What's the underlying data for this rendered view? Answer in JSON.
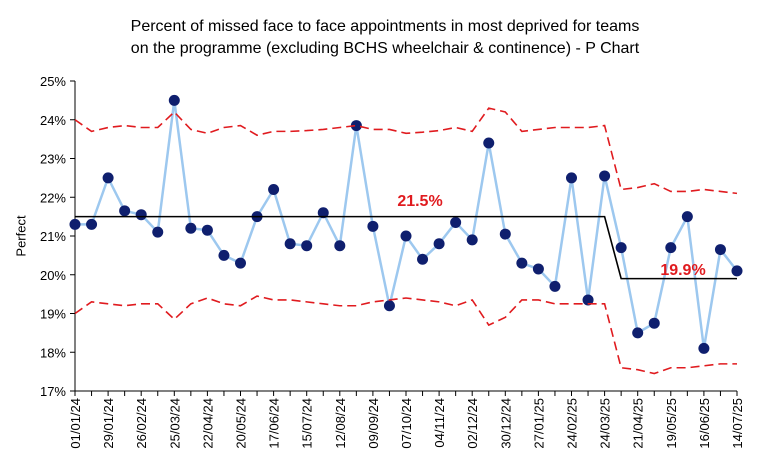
{
  "chart_data": {
    "type": "line",
    "title": [
      "Percent of missed face to face appointments in most deprived for teams",
      "on the programme (excluding BCHS wheelchair & continence) - P Chart"
    ],
    "y_label": "Perfect",
    "categories": [
      "01/01/24",
      null,
      "29/01/24",
      null,
      "26/02/24",
      null,
      "25/03/24",
      null,
      "22/04/24",
      null,
      "20/05/24",
      null,
      "17/06/24",
      null,
      "15/07/24",
      null,
      "12/08/24",
      null,
      "09/09/24",
      null,
      "07/10/24",
      null,
      "04/11/24",
      null,
      "02/12/24",
      null,
      "30/12/24",
      null,
      "27/01/25",
      null,
      "24/02/25",
      null,
      "24/03/25",
      null,
      "21/04/25",
      null,
      "19/05/25",
      null,
      "16/06/25",
      null,
      "14/07/25"
    ],
    "series": [
      {
        "role": "data",
        "color": "#9dc8ef",
        "marker_color": "#0f1f6e",
        "values": [
          21.3,
          21.3,
          22.5,
          21.65,
          21.55,
          21.1,
          24.5,
          21.2,
          21.15,
          20.5,
          20.3,
          21.5,
          22.2,
          20.8,
          20.75,
          21.6,
          20.75,
          23.85,
          21.25,
          19.2,
          21.0,
          20.4,
          20.8,
          21.35,
          20.9,
          23.4,
          21.05,
          20.3,
          20.15,
          19.7,
          22.5,
          19.35,
          22.55,
          20.7,
          18.5,
          18.75,
          20.7,
          21.5,
          18.1,
          20.65,
          20.1
        ]
      },
      {
        "role": "mean",
        "color": "#000000",
        "values": [
          21.5,
          21.5,
          21.5,
          21.5,
          21.5,
          21.5,
          21.5,
          21.5,
          21.5,
          21.5,
          21.5,
          21.5,
          21.5,
          21.5,
          21.5,
          21.5,
          21.5,
          21.5,
          21.5,
          21.5,
          21.5,
          21.5,
          21.5,
          21.5,
          21.5,
          21.5,
          21.5,
          21.5,
          21.5,
          21.5,
          21.5,
          21.5,
          21.5,
          19.9,
          19.9,
          19.9,
          19.9,
          19.9,
          19.9,
          19.9,
          19.9
        ]
      },
      {
        "role": "limit",
        "color": "#e01b1f",
        "values": [
          24.0,
          23.7,
          23.8,
          23.85,
          23.8,
          23.8,
          24.2,
          23.75,
          23.65,
          23.8,
          23.85,
          23.6,
          23.7,
          23.7,
          23.72,
          23.75,
          23.8,
          23.85,
          23.75,
          23.75,
          23.65,
          23.68,
          23.72,
          23.8,
          23.7,
          24.3,
          24.2,
          23.7,
          23.75,
          23.8,
          23.8,
          23.8,
          23.85,
          22.2,
          22.25,
          22.35,
          22.15,
          22.15,
          22.2,
          22.15,
          22.1
        ]
      },
      {
        "role": "limit",
        "color": "#e01b1f",
        "values": [
          19.0,
          19.3,
          19.25,
          19.2,
          19.25,
          19.25,
          18.85,
          19.25,
          19.4,
          19.25,
          19.2,
          19.45,
          19.35,
          19.35,
          19.3,
          19.25,
          19.2,
          19.2,
          19.3,
          19.35,
          19.4,
          19.35,
          19.3,
          19.2,
          19.35,
          18.7,
          18.9,
          19.35,
          19.35,
          19.25,
          19.25,
          19.25,
          19.25,
          17.6,
          17.55,
          17.45,
          17.6,
          17.6,
          17.65,
          17.7,
          17.7
        ]
      }
    ],
    "annotations": [
      "21.5%",
      "19.9%"
    ],
    "annotation_color": "#e01b1f",
    "ylim": [
      17,
      25
    ],
    "yticks": [
      {
        "value": 17,
        "label": "17%"
      },
      {
        "value": 18,
        "label": "18%"
      },
      {
        "value": 19,
        "label": "19%"
      },
      {
        "value": 20,
        "label": "20%"
      },
      {
        "value": 21,
        "label": "21%"
      },
      {
        "value": 22,
        "label": "22%"
      },
      {
        "value": 23,
        "label": "23%"
      },
      {
        "value": 24,
        "label": "24%"
      },
      {
        "value": 25,
        "label": "25%"
      }
    ],
    "grid": false
  }
}
